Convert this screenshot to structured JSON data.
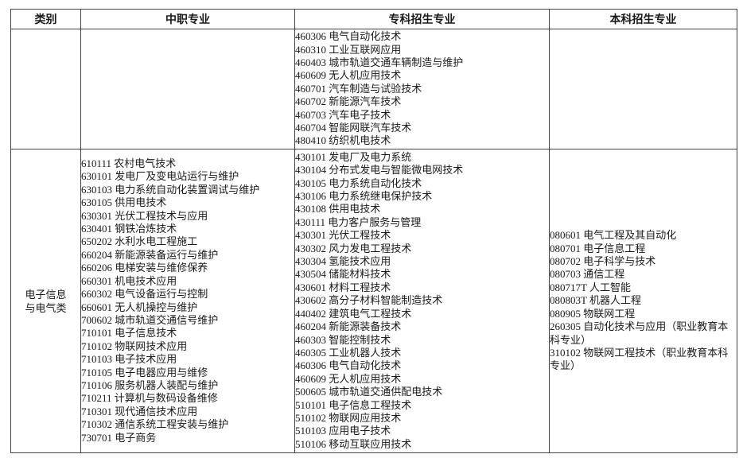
{
  "table": {
    "headers": {
      "category": "类别",
      "secondary": "中职专业",
      "college": "专科招生专业",
      "undergraduate": "本科招生专业"
    },
    "rows": [
      {
        "category_lines": [],
        "secondary_majors": [],
        "college_majors": [
          "460306 电气自动化技术",
          "460310 工业互联网应用",
          "460403 城市轨道交通车辆制造与维护",
          "460609 无人机应用技术",
          "460701 汽车制造与试验技术",
          "460702 新能源汽车技术",
          "460703 汽车电子技术",
          "460704 智能网联汽车技术",
          "480410 纺织机电技术"
        ],
        "undergraduate_majors": []
      },
      {
        "category_lines": [
          "电子信息",
          "与电气类"
        ],
        "secondary_majors": [
          "610111 农村电气技术",
          "630101 发电厂及变电站运行与维护",
          "630103 电力系统自动化装置调试与维护",
          "630105 供用电技术",
          "630301 光伏工程技术与应用",
          "630401 钢铁冶炼技术",
          "650202 水利水电工程施工",
          "660204 新能源装备运行与维护",
          "660206 电梯安装与维修保养",
          "660301 机电技术应用",
          "660302 电气设备运行与控制",
          "660601 无人机操控与维护",
          "700602 城市轨道交通信号维护",
          "710101 电子信息技术",
          "710102 物联网技术应用",
          "710103 电子技术应用",
          "710105 电子电器应用与维修",
          "710106 服务机器人装配与维护",
          "710211 计算机与数码设备维修",
          "710301 现代通信技术应用",
          "710302 通信系统工程安装与维护",
          "730701 电子商务"
        ],
        "college_majors": [
          "430101 发电厂及电力系统",
          "430104 分布式发电与智能微电网技术",
          "430105 电力系统自动化技术",
          "430106 电力系统继电保护技术",
          "430108 供用电技术",
          "430111 电力客户服务与管理",
          "430301 光伏工程技术",
          "430302 风力发电工程技术",
          "430304 氢能技术应用",
          "430504 储能材料技术",
          "430601 材料工程技术",
          "430602 高分子材料智能制造技术",
          "440402 建筑电气工程技术",
          "460204 新能源装备技术",
          "460303 智能控制技术",
          "460305 工业机器人技术",
          "460306 电气自动化技术",
          "460609 无人机应用技术",
          "500605 城市轨道交通供配电技术",
          "510101 电子信息工程技术",
          "510102 物联网应用技术",
          "510103 应用电子技术",
          "510106 移动互联应用技术"
        ],
        "undergraduate_majors": [
          "080601 电气工程及其自动化",
          "080701 电子信息工程",
          "080702 电子科学与技术",
          "080703 通信工程",
          "080717T 人工智能",
          "080803T 机器人工程",
          "080905 物联网工程",
          "260305 自动化技术与应用（职业教育本科专业）",
          "310102 物联网工程技术（职业教育本科专业）"
        ]
      }
    ]
  }
}
